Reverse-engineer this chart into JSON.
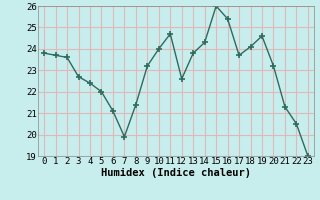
{
  "x": [
    0,
    1,
    2,
    3,
    4,
    5,
    6,
    7,
    8,
    9,
    10,
    11,
    12,
    13,
    14,
    15,
    16,
    17,
    18,
    19,
    20,
    21,
    22,
    23
  ],
  "y": [
    23.8,
    23.7,
    23.6,
    22.7,
    22.4,
    22.0,
    21.1,
    19.9,
    21.4,
    23.2,
    24.0,
    24.7,
    22.6,
    23.8,
    24.3,
    26.0,
    25.4,
    23.7,
    24.1,
    24.6,
    23.2,
    21.3,
    20.5,
    19.0
  ],
  "line_color": "#2d6b5e",
  "marker": "+",
  "markersize": 4,
  "linewidth": 1.0,
  "xlabel": "Humidex (Indice chaleur)",
  "xlim": [
    -0.5,
    23.5
  ],
  "ylim": [
    19,
    26
  ],
  "yticks": [
    19,
    20,
    21,
    22,
    23,
    24,
    25,
    26
  ],
  "xticks": [
    0,
    1,
    2,
    3,
    4,
    5,
    6,
    7,
    8,
    9,
    10,
    11,
    12,
    13,
    14,
    15,
    16,
    17,
    18,
    19,
    20,
    21,
    22,
    23
  ],
  "bg_color": "#c8eded",
  "grid_color": "#e0b8b8",
  "axis_label_fontsize": 7.5,
  "tick_fontsize": 6.5
}
